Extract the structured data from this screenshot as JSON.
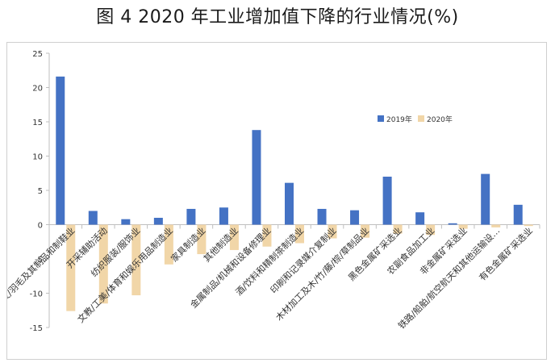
{
  "title": "图 4 2020 年工业增加值下降的行业情况(%)",
  "chart_data": {
    "type": "bar",
    "ylim": [
      -15,
      25
    ],
    "yticks": [
      25,
      20,
      15,
      10,
      5,
      0,
      -5,
      -10,
      -15
    ],
    "grid": false,
    "legend_position": "top-right",
    "categories": [
      "皮革/毛皮/羽毛及其制品和制鞋业",
      "开采辅助活动",
      "纺织服装/服饰业",
      "文教/工美/体育和娱乐用品制造业",
      "家具制造业",
      "其他制造业",
      "金属制品/机械和设备修理业",
      "酒/饮料和精制茶制造业",
      "印刷和记录媒介复制业",
      "木材加工及木/竹/藤/棕/草制品业",
      "黑色金属矿采选业",
      "农副食品加工业",
      "非金属矿采选业",
      "铁路/船舶/航空航天和其他运输设…",
      "有色金属矿采选业"
    ],
    "series": [
      {
        "name": "2019年",
        "color": "#4472c4",
        "values": [
          21.6,
          2.0,
          0.8,
          1.0,
          2.3,
          2.5,
          13.8,
          6.1,
          2.3,
          2.1,
          7.0,
          1.8,
          0.2,
          7.4,
          2.9
        ]
      },
      {
        "name": "2020年",
        "color": "#f1d6a8",
        "values": [
          -12.6,
          -11.5,
          -10.3,
          -5.8,
          -4.3,
          -3.7,
          -3.2,
          -2.7,
          -2.0,
          -1.9,
          -1.3,
          -1.5,
          -0.6,
          -0.4,
          -0.2
        ]
      }
    ]
  }
}
